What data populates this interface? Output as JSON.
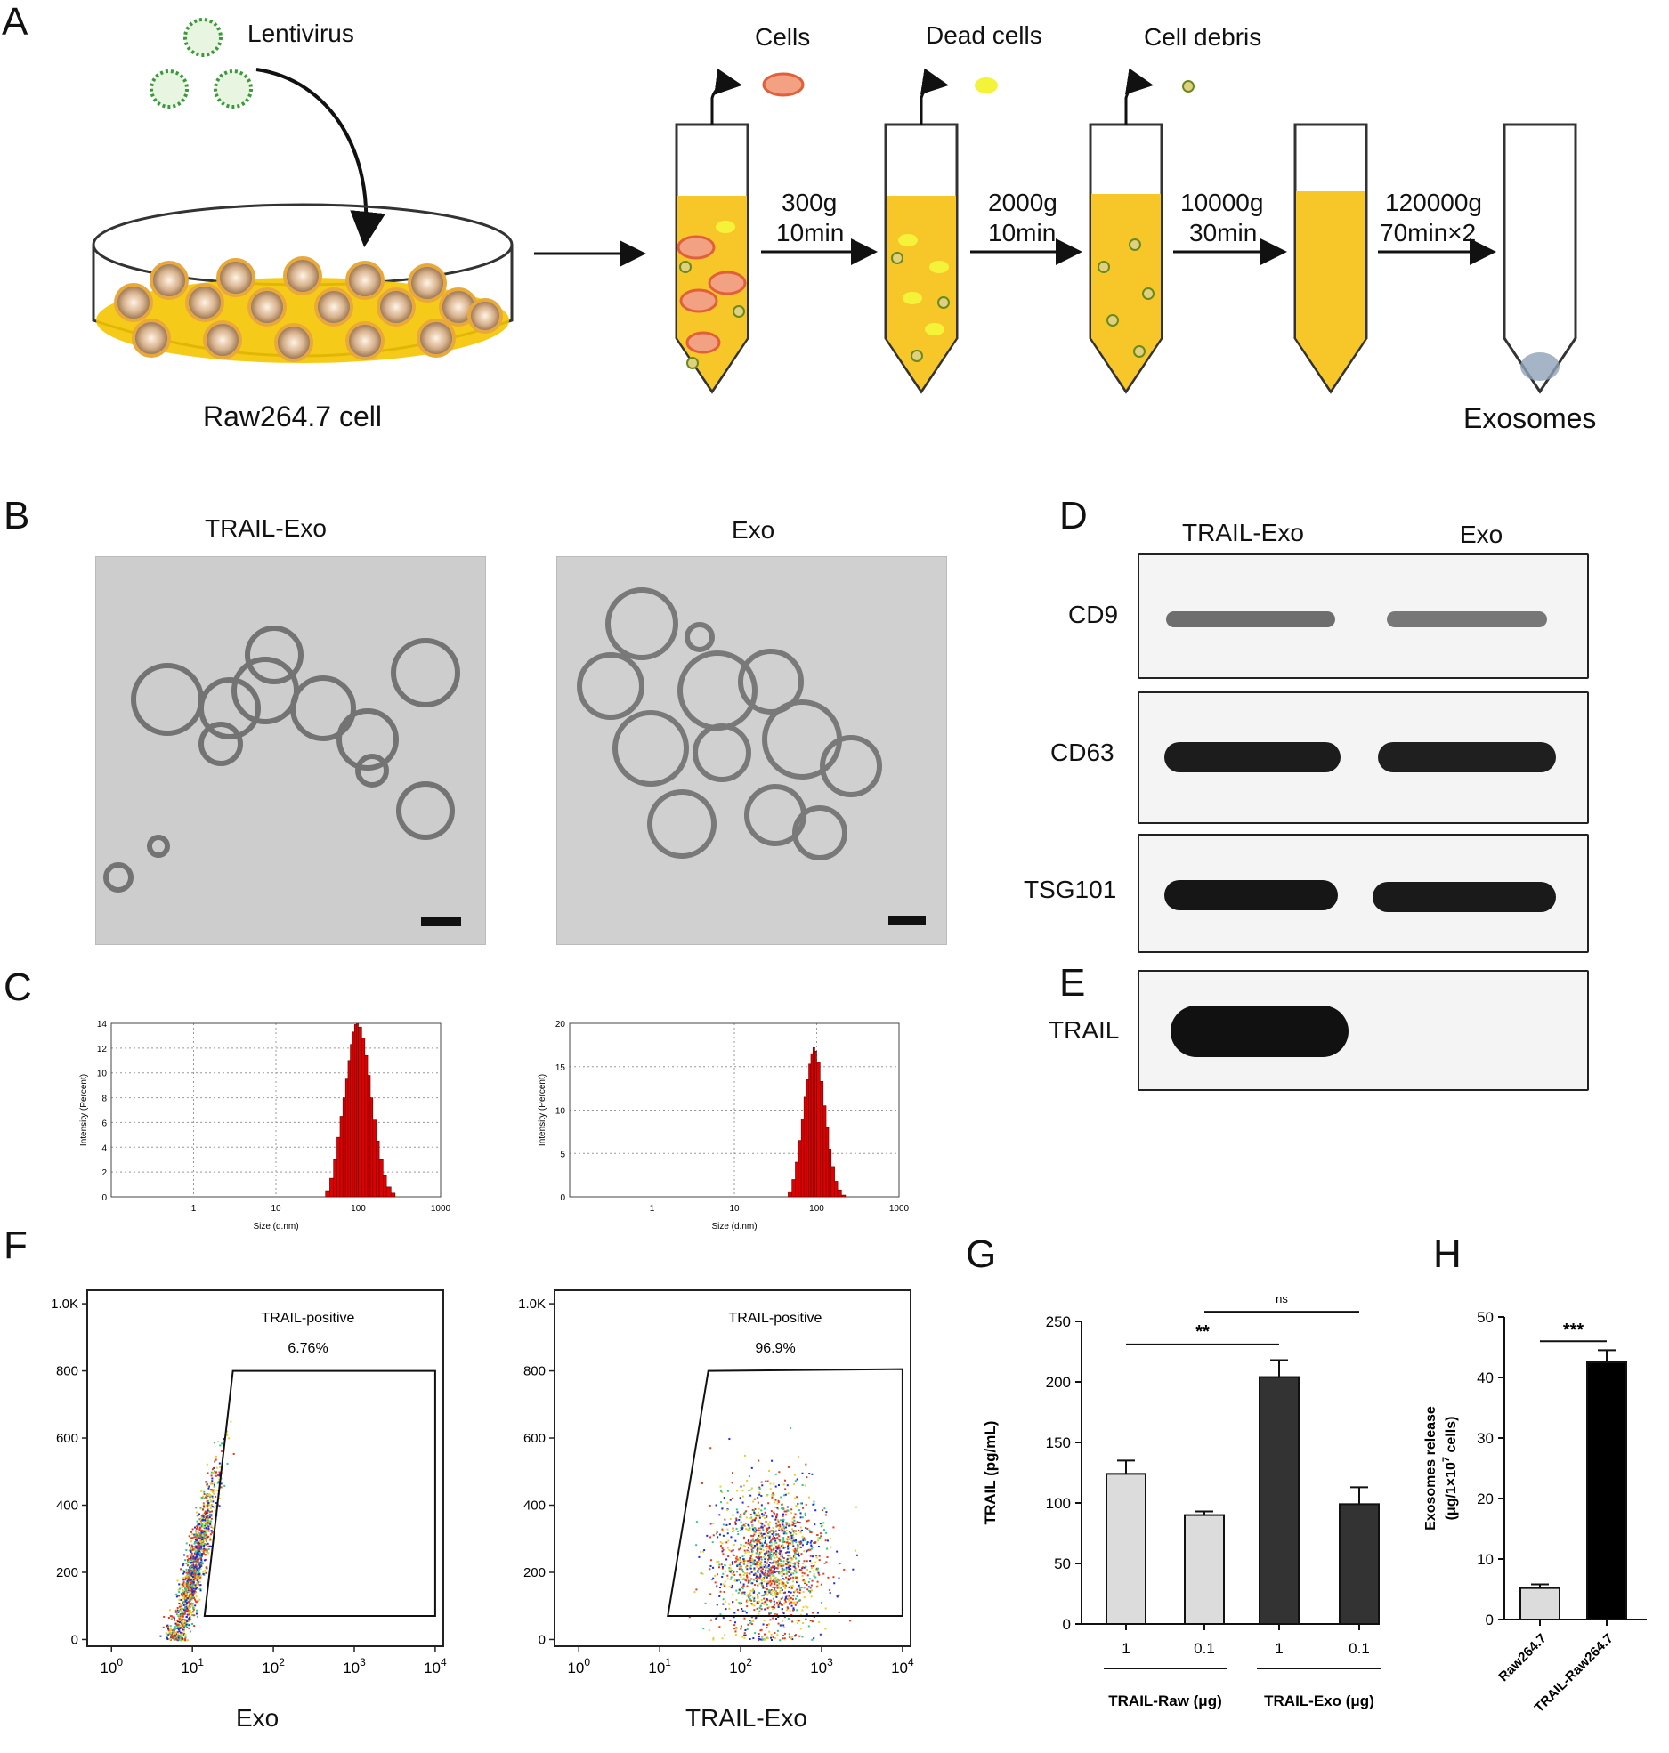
{
  "panels": {
    "A": "A",
    "B": "B",
    "C": "C",
    "D": "D",
    "E": "E",
    "F": "F",
    "G": "G",
    "H": "H"
  },
  "panelA": {
    "lentivirus": "Lentivirus",
    "cell_line": "Raw264.7 cell",
    "pellet_labels": [
      "Cells",
      "Dead cells",
      "Cell debris"
    ],
    "steps": [
      {
        "g": "300g",
        "t": "10min"
      },
      {
        "g": "2000g",
        "t": "10min"
      },
      {
        "g": "10000g",
        "t": "30min"
      },
      {
        "g": "120000g",
        "t": "70min×2"
      }
    ],
    "product": "Exosomes"
  },
  "panelB": {
    "left_title": "TRAIL-Exo",
    "right_title": "Exo"
  },
  "panelC": {
    "chart_data": [
      {
        "type": "bar",
        "xlabel": "Size (d.nm)",
        "ylabel": "Intensity (Percent)",
        "xscale": "log",
        "xlim": [
          0.1,
          1000
        ],
        "ylim": [
          0,
          14
        ],
        "yticks": [
          "0",
          "2",
          "4",
          "6",
          "8",
          "10",
          "12",
          "14"
        ],
        "xticks": [
          "1",
          "10",
          "100",
          "1000"
        ],
        "x": [
          40,
          45,
          50,
          55,
          60,
          65,
          70,
          75,
          80,
          85,
          90,
          95,
          100,
          110,
          120,
          130,
          140,
          150,
          165,
          180,
          200,
          220,
          250
        ],
        "values": [
          0.5,
          1.5,
          3,
          4.8,
          6.5,
          8,
          9.5,
          11,
          12.3,
          13.3,
          13.9,
          14,
          13.7,
          12.8,
          11.4,
          9.8,
          8,
          6.2,
          4.5,
          3,
          1.7,
          0.8,
          0.3
        ]
      },
      {
        "type": "bar",
        "xlabel": "Size (d.nm)",
        "ylabel": "Intensity (Percent)",
        "xscale": "log",
        "xlim": [
          0.1,
          1000
        ],
        "ylim": [
          0,
          20
        ],
        "yticks": [
          "0",
          "5",
          "10",
          "15",
          "20"
        ],
        "xticks": [
          "1",
          "10",
          "100",
          "1000"
        ],
        "x": [
          45,
          50,
          55,
          60,
          65,
          70,
          75,
          80,
          85,
          90,
          95,
          100,
          110,
          120,
          130,
          140,
          150,
          165,
          180,
          200
        ],
        "values": [
          0.6,
          2,
          4,
          6.5,
          9,
          11.5,
          13.5,
          15.3,
          16.5,
          17.2,
          16.8,
          15.5,
          13.3,
          10.5,
          8,
          5.5,
          3.5,
          1.8,
          0.8,
          0.2
        ]
      }
    ]
  },
  "panelD": {
    "col_titles": [
      "TRAIL-Exo",
      "Exo"
    ],
    "rows": [
      "CD9",
      "CD63",
      "TSG101"
    ]
  },
  "panelE": {
    "row": "TRAIL"
  },
  "panelF": {
    "left": {
      "gate_label": "TRAIL-positive",
      "gate_pct": "6.76%",
      "xlabel": "Exo"
    },
    "right": {
      "gate_label": "TRAIL-positive",
      "gate_pct": "96.9%",
      "xlabel": "TRAIL-Exo"
    },
    "yticks": [
      "0",
      "200",
      "400",
      "600",
      "800",
      "1.0K"
    ],
    "xticks": [
      "0",
      "1",
      "2",
      "3",
      "4"
    ]
  },
  "panelG": {
    "chart_data": {
      "type": "bar",
      "ylabel": "TRAIL (pg/mL)",
      "ylim": [
        0,
        250
      ],
      "yticks": [
        "0",
        "50",
        "100",
        "150",
        "200",
        "250"
      ],
      "categories": [
        "1",
        "0.1",
        "1",
        "0.1"
      ],
      "groups": [
        "TRAIL-Raw (μg)",
        "TRAIL-Exo (μg)"
      ],
      "values": [
        124,
        90,
        204,
        99
      ],
      "errors": [
        11,
        3,
        14,
        14
      ],
      "colors": [
        "#dcdcdc",
        "#dcdcdc",
        "#333333",
        "#333333"
      ],
      "annotations": [
        "**",
        "ns"
      ]
    }
  },
  "panelH": {
    "chart_data": {
      "type": "bar",
      "ylabel": "Exosomes release",
      "ylabel2": "(μg/1×10",
      "ylabel_exp": "7",
      "ylabel3": " cells)",
      "ylim": [
        0,
        50
      ],
      "yticks": [
        "0",
        "10",
        "20",
        "30",
        "40",
        "50"
      ],
      "categories": [
        "Raw264.7",
        "TRAIL-Raw264.7"
      ],
      "values": [
        5.2,
        42.5
      ],
      "errors": [
        0.6,
        2
      ],
      "colors": [
        "#dcdcdc",
        "#000000"
      ],
      "annotations": [
        "***"
      ]
    }
  }
}
